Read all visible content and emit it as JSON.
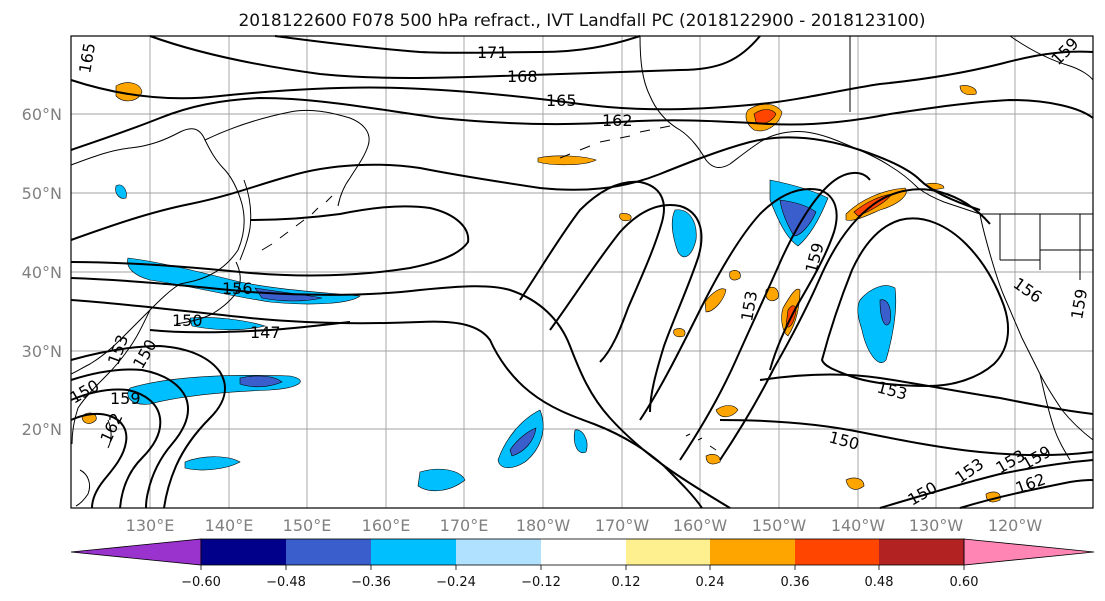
{
  "title": "2018122600 F078 500 hPa refract., IVT Landfall PC (2018122900 - 2018123100)",
  "map": {
    "lat_labels": [
      "60°N",
      "50°N",
      "40°N",
      "30°N",
      "20°N"
    ],
    "lon_labels": [
      "130°E",
      "140°E",
      "150°E",
      "160°E",
      "170°E",
      "180°W",
      "170°W",
      "160°W",
      "150°W",
      "140°W",
      "130°W",
      "120°W"
    ],
    "grid": true,
    "contour_labels": [
      "171",
      "168",
      "165",
      "165",
      "162",
      "159",
      "156",
      "153",
      "153",
      "150",
      "150",
      "147",
      "150",
      "159",
      "162",
      "153",
      "150",
      "159",
      "153",
      "156",
      "159",
      "153",
      "159",
      "162",
      "150"
    ]
  },
  "colorbar": {
    "ticks": [
      "−0.60",
      "−0.48",
      "−0.36",
      "−0.24",
      "−0.12",
      "0.12",
      "0.24",
      "0.36",
      "0.48",
      "0.60"
    ],
    "colors": [
      "#9a32cd",
      "#00008b",
      "#3a5fcd",
      "#00bfff",
      "#b0e2ff",
      "#ffffff",
      "#fff08f",
      "#ffa500",
      "#ff4500",
      "#b22222",
      "#ff86b4"
    ]
  },
  "colors": {
    "frame": "#000000",
    "grid": "#a0a0a0",
    "coast": "#000000",
    "contour": "#000000"
  }
}
